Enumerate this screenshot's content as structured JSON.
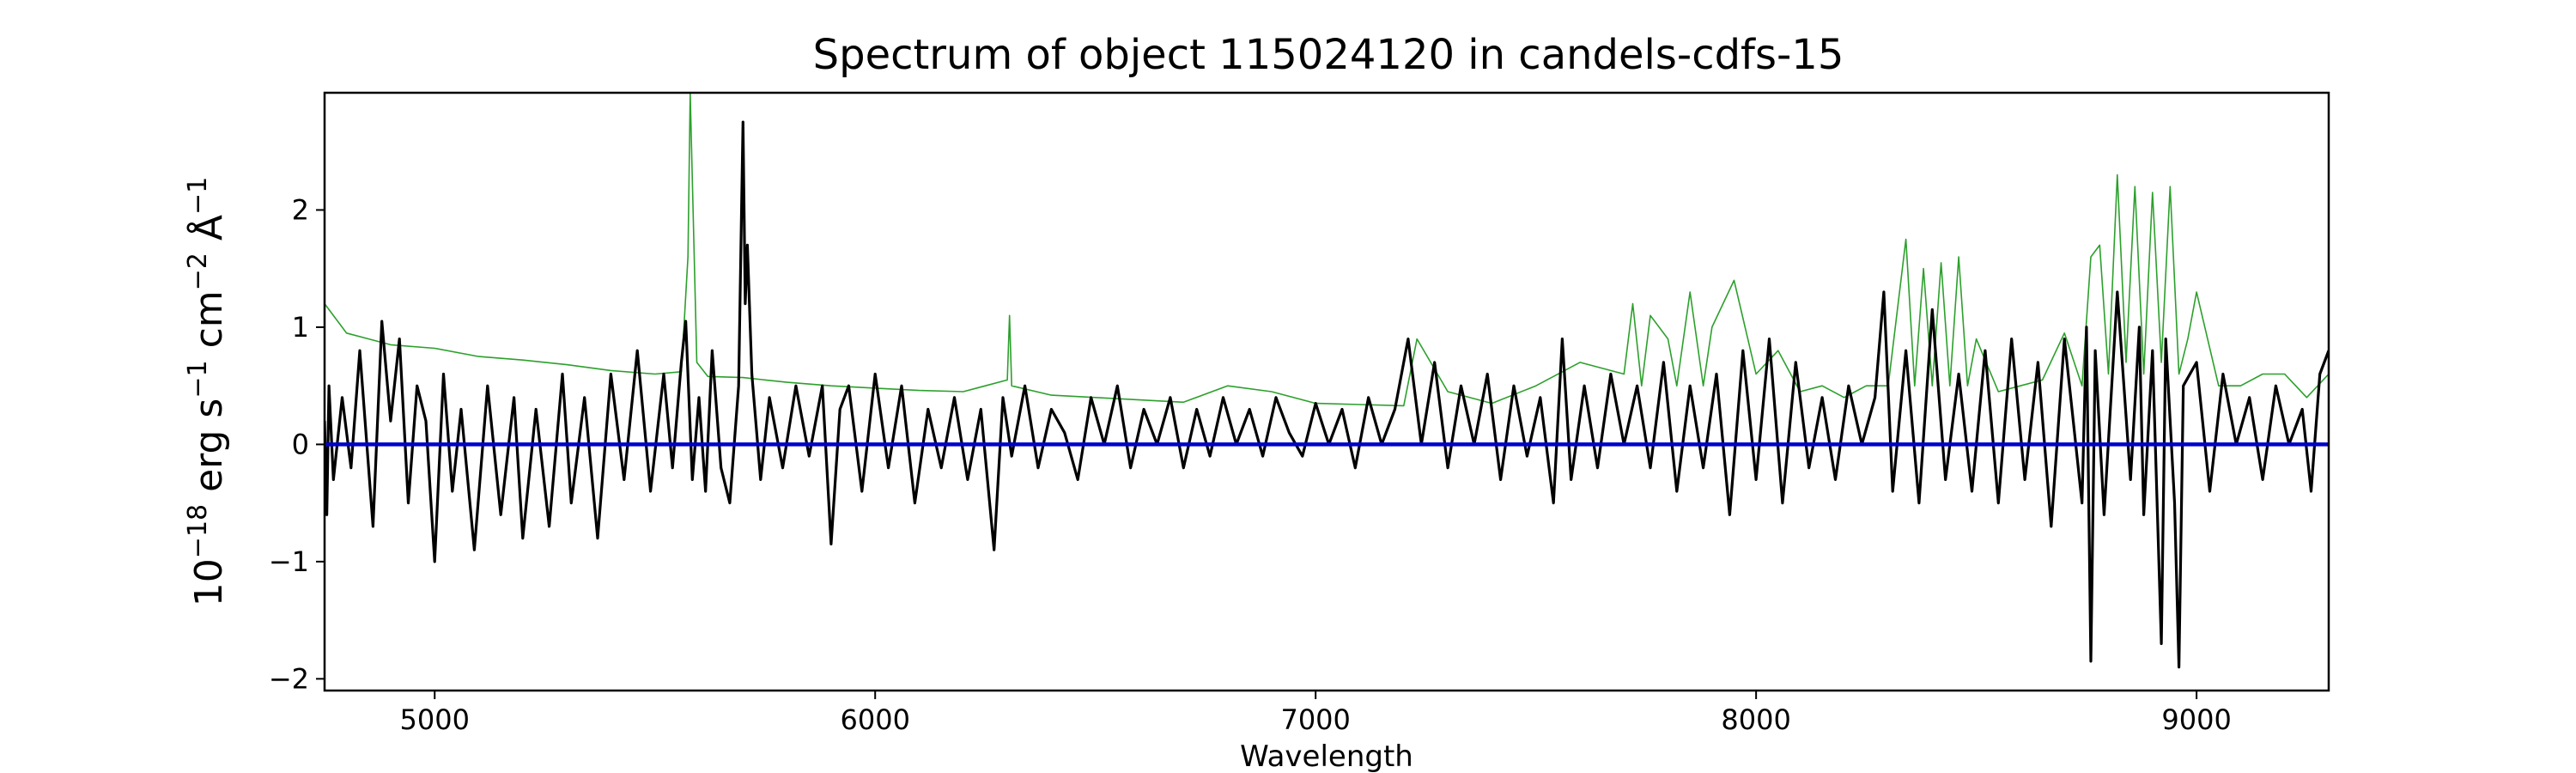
{
  "chart_data": {
    "type": "line",
    "title": "Spectrum of object 115024120 in candels-cdfs-15",
    "xlabel": "Wavelength",
    "ylabel": {
      "prefix": "10",
      "exp1": "−18",
      "unit1": " erg s",
      "exp2": "−1",
      "unit2": " cm",
      "exp3": "−2",
      "unit3": " Å",
      "exp4": "−1"
    },
    "xlim": [
      4750,
      9300
    ],
    "ylim": [
      -2.1,
      3.0
    ],
    "x_ticks": [
      5000,
      6000,
      7000,
      8000,
      9000
    ],
    "x_tick_labels": [
      "5000",
      "6000",
      "7000",
      "8000",
      "9000"
    ],
    "y_ticks": [
      -2,
      -1,
      0,
      1,
      2
    ],
    "y_tick_labels": [
      "−2",
      "−1",
      "0",
      "1",
      "2"
    ],
    "grid": false,
    "colors": {
      "flux": "#000000",
      "noise": "#2ca02c",
      "zero": "#0000cc"
    },
    "series": [
      {
        "key": "noise",
        "x": [
          4750,
          4800,
          4850,
          4900,
          5000,
          5100,
          5200,
          5300,
          5400,
          5500,
          5560,
          5575,
          5580,
          5595,
          5620,
          5700,
          5800,
          5900,
          6000,
          6100,
          6200,
          6300,
          6305,
          6310,
          6400,
          6500,
          6600,
          6700,
          6800,
          6900,
          7000,
          7100,
          7200,
          7230,
          7300,
          7400,
          7500,
          7600,
          7700,
          7720,
          7740,
          7760,
          7800,
          7820,
          7850,
          7880,
          7900,
          7950,
          8000,
          8050,
          8100,
          8150,
          8200,
          8250,
          8300,
          8340,
          8360,
          8380,
          8400,
          8420,
          8440,
          8460,
          8480,
          8500,
          8550,
          8600,
          8650,
          8700,
          8740,
          8760,
          8780,
          8800,
          8820,
          8840,
          8860,
          8880,
          8900,
          8920,
          8940,
          8960,
          8980,
          9000,
          9050,
          9100,
          9150,
          9200,
          9250,
          9300
        ],
        "y": [
          1.2,
          0.95,
          0.9,
          0.85,
          0.82,
          0.75,
          0.72,
          0.68,
          0.63,
          0.6,
          0.62,
          1.6,
          3.0,
          0.7,
          0.58,
          0.57,
          0.53,
          0.5,
          0.48,
          0.46,
          0.45,
          0.55,
          1.1,
          0.5,
          0.42,
          0.4,
          0.38,
          0.36,
          0.5,
          0.45,
          0.35,
          0.34,
          0.33,
          0.9,
          0.45,
          0.35,
          0.5,
          0.7,
          0.6,
          1.2,
          0.5,
          1.1,
          0.9,
          0.5,
          1.3,
          0.5,
          1.0,
          1.4,
          0.6,
          0.8,
          0.45,
          0.5,
          0.4,
          0.5,
          0.5,
          1.75,
          0.5,
          1.5,
          0.5,
          1.55,
          0.5,
          1.6,
          0.5,
          0.9,
          0.45,
          0.5,
          0.55,
          0.95,
          0.5,
          1.6,
          1.7,
          0.6,
          2.3,
          0.7,
          2.2,
          0.6,
          2.15,
          0.7,
          2.2,
          0.6,
          0.9,
          1.3,
          0.5,
          0.5,
          0.6,
          0.6,
          0.4,
          0.6
        ]
      },
      {
        "key": "flux",
        "x": [
          4750,
          4755,
          4760,
          4770,
          4790,
          4810,
          4830,
          4860,
          4880,
          4900,
          4920,
          4940,
          4960,
          4980,
          5000,
          5020,
          5040,
          5060,
          5090,
          5120,
          5150,
          5180,
          5200,
          5230,
          5260,
          5290,
          5310,
          5340,
          5370,
          5400,
          5430,
          5460,
          5490,
          5520,
          5540,
          5560,
          5570,
          5585,
          5600,
          5615,
          5630,
          5650,
          5670,
          5690,
          5700,
          5705,
          5710,
          5720,
          5740,
          5760,
          5790,
          5820,
          5850,
          5880,
          5900,
          5920,
          5940,
          5970,
          6000,
          6030,
          6060,
          6090,
          6120,
          6150,
          6180,
          6210,
          6240,
          6270,
          6290,
          6310,
          6340,
          6370,
          6400,
          6430,
          6460,
          6490,
          6520,
          6550,
          6580,
          6610,
          6640,
          6670,
          6700,
          6730,
          6760,
          6790,
          6820,
          6850,
          6880,
          6910,
          6940,
          6970,
          7000,
          7030,
          7060,
          7090,
          7120,
          7150,
          7180,
          7210,
          7240,
          7270,
          7300,
          7330,
          7360,
          7390,
          7420,
          7450,
          7480,
          7510,
          7540,
          7560,
          7580,
          7610,
          7640,
          7670,
          7700,
          7730,
          7760,
          7790,
          7820,
          7850,
          7880,
          7910,
          7940,
          7970,
          8000,
          8030,
          8060,
          8090,
          8120,
          8150,
          8180,
          8210,
          8240,
          8270,
          8290,
          8310,
          8340,
          8370,
          8400,
          8430,
          8460,
          8490,
          8520,
          8550,
          8580,
          8610,
          8640,
          8670,
          8700,
          8720,
          8740,
          8750,
          8760,
          8770,
          8790,
          8820,
          8850,
          8870,
          8880,
          8900,
          8920,
          8930,
          8950,
          8960,
          8970,
          9000,
          9030,
          9060,
          9090,
          9120,
          9150,
          9180,
          9210,
          9240,
          9260,
          9280,
          9300
        ],
        "y": [
          0.2,
          -0.6,
          0.5,
          -0.3,
          0.4,
          -0.2,
          0.8,
          -0.7,
          1.05,
          0.2,
          0.9,
          -0.5,
          0.5,
          0.2,
          -1.0,
          0.6,
          -0.4,
          0.3,
          -0.9,
          0.5,
          -0.6,
          0.4,
          -0.8,
          0.3,
          -0.7,
          0.6,
          -0.5,
          0.4,
          -0.8,
          0.6,
          -0.3,
          0.8,
          -0.4,
          0.6,
          -0.2,
          0.7,
          1.05,
          -0.3,
          0.4,
          -0.4,
          0.8,
          -0.2,
          -0.5,
          0.5,
          2.75,
          1.2,
          1.7,
          0.6,
          -0.3,
          0.4,
          -0.2,
          0.5,
          -0.1,
          0.5,
          -0.85,
          0.3,
          0.5,
          -0.4,
          0.6,
          -0.2,
          0.5,
          -0.5,
          0.3,
          -0.2,
          0.4,
          -0.3,
          0.3,
          -0.9,
          0.4,
          -0.1,
          0.5,
          -0.2,
          0.3,
          0.1,
          -0.3,
          0.4,
          0.0,
          0.5,
          -0.2,
          0.3,
          0.0,
          0.4,
          -0.2,
          0.3,
          -0.1,
          0.4,
          0.0,
          0.3,
          -0.1,
          0.4,
          0.1,
          -0.1,
          0.35,
          0.0,
          0.3,
          -0.2,
          0.4,
          0.0,
          0.3,
          0.9,
          0.0,
          0.7,
          -0.2,
          0.5,
          0.0,
          0.6,
          -0.3,
          0.5,
          -0.1,
          0.4,
          -0.5,
          0.9,
          -0.3,
          0.5,
          -0.2,
          0.6,
          0.0,
          0.5,
          -0.2,
          0.7,
          -0.4,
          0.5,
          -0.2,
          0.6,
          -0.6,
          0.8,
          -0.3,
          0.9,
          -0.5,
          0.7,
          -0.2,
          0.4,
          -0.3,
          0.5,
          0.0,
          0.4,
          1.3,
          -0.4,
          0.8,
          -0.5,
          1.15,
          -0.3,
          0.6,
          -0.4,
          0.8,
          -0.5,
          0.9,
          -0.3,
          0.7,
          -0.7,
          0.9,
          0.2,
          -0.5,
          1.0,
          -1.85,
          0.8,
          -0.6,
          1.3,
          -0.3,
          1.0,
          -0.6,
          0.8,
          -1.7,
          0.9,
          -0.5,
          -1.9,
          0.5,
          0.7,
          -0.4,
          0.6,
          0.0,
          0.4,
          -0.3,
          0.5,
          0.0,
          0.3,
          -0.4,
          0.6,
          0.8
        ]
      },
      {
        "key": "zero",
        "x": [
          4750,
          9300
        ],
        "y": [
          0,
          0
        ]
      }
    ]
  }
}
